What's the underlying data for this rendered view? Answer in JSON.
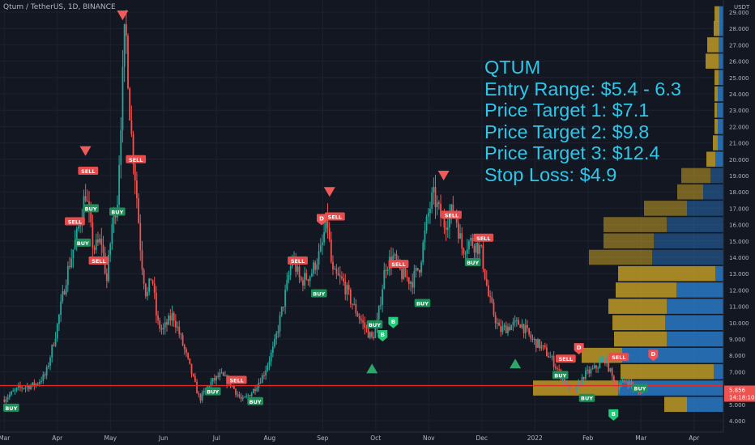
{
  "header": {
    "symbol_line": "Qtum / TetherUS, 1D, BINANCE"
  },
  "price_axis": {
    "unit_label": "USDT",
    "tick_labels": [
      "29.000",
      "28.000",
      "27.000",
      "26.000",
      "25.000",
      "24.000",
      "23.000",
      "22.000",
      "21.000",
      "20.000",
      "19.000",
      "18.000",
      "17.000",
      "16.000",
      "15.000",
      "14.000",
      "13.000",
      "12.000",
      "11.000",
      "10.000",
      "9.000",
      "8.000",
      "7.000",
      "6.000",
      "5.000",
      "4.000"
    ],
    "last_price_label": "5.856",
    "countdown_label": "14:18:10"
  },
  "annotation": {
    "lines": [
      "QTUM",
      "Entry Range: $5.4 - 6.3",
      "Price Target 1: $7.1",
      "Price Target 2: $9.8",
      "Price Target 3: $12.4",
      "Stop Loss: $4.9"
    ]
  },
  "colors": {
    "background": "#131722",
    "up": "#26a69a",
    "down": "#ef5350",
    "annotation": "#2fc6e8",
    "level_line": "#e02b2b",
    "vp_up": "#2a7fd0",
    "vp_down": "#c9a227"
  },
  "chart_data": {
    "type": "candlestick",
    "instrument": "QTUM/USDT",
    "interval": "1D",
    "exchange": "BINANCE",
    "x_labels": [
      "Mar",
      "Apr",
      "May",
      "Jun",
      "Jul",
      "Aug",
      "Sep",
      "Oct",
      "Nov",
      "Dec",
      "2022",
      "Feb",
      "Mar",
      "Apr"
    ],
    "ylim": [
      3.9,
      29.5
    ],
    "horizontal_level": 6.15,
    "last_price": 5.856,
    "price_path": [
      {
        "m": 0.0,
        "p": 5.3
      },
      {
        "m": 0.3,
        "p": 6.0
      },
      {
        "m": 0.6,
        "p": 6.2
      },
      {
        "m": 0.8,
        "p": 6.8
      },
      {
        "m": 1.0,
        "p": 9.5
      },
      {
        "m": 1.2,
        "p": 13.0
      },
      {
        "m": 1.4,
        "p": 15.5
      },
      {
        "m": 1.55,
        "p": 18.0
      },
      {
        "m": 1.7,
        "p": 14.5
      },
      {
        "m": 1.85,
        "p": 15.0
      },
      {
        "m": 1.95,
        "p": 12.5
      },
      {
        "m": 2.05,
        "p": 16.0
      },
      {
        "m": 2.15,
        "p": 17.5
      },
      {
        "m": 2.3,
        "p": 28.5
      },
      {
        "m": 2.4,
        "p": 22.0
      },
      {
        "m": 2.5,
        "p": 18.5
      },
      {
        "m": 2.6,
        "p": 14.0
      },
      {
        "m": 2.7,
        "p": 11.5
      },
      {
        "m": 2.8,
        "p": 13.0
      },
      {
        "m": 2.9,
        "p": 10.0
      },
      {
        "m": 3.0,
        "p": 9.5
      },
      {
        "m": 3.2,
        "p": 10.5
      },
      {
        "m": 3.4,
        "p": 8.5
      },
      {
        "m": 3.7,
        "p": 5.3
      },
      {
        "m": 3.9,
        "p": 6.3
      },
      {
        "m": 4.1,
        "p": 6.8
      },
      {
        "m": 4.3,
        "p": 6.2
      },
      {
        "m": 4.5,
        "p": 5.2
      },
      {
        "m": 4.7,
        "p": 5.8
      },
      {
        "m": 4.9,
        "p": 6.8
      },
      {
        "m": 5.1,
        "p": 8.5
      },
      {
        "m": 5.3,
        "p": 11.5
      },
      {
        "m": 5.45,
        "p": 14.0
      },
      {
        "m": 5.6,
        "p": 12.5
      },
      {
        "m": 5.8,
        "p": 13.0
      },
      {
        "m": 6.0,
        "p": 14.5
      },
      {
        "m": 6.1,
        "p": 16.5
      },
      {
        "m": 6.2,
        "p": 13.0
      },
      {
        "m": 6.4,
        "p": 12.5
      },
      {
        "m": 6.6,
        "p": 11.0
      },
      {
        "m": 6.8,
        "p": 9.8
      },
      {
        "m": 6.95,
        "p": 9.0
      },
      {
        "m": 7.05,
        "p": 10.0
      },
      {
        "m": 7.2,
        "p": 13.5
      },
      {
        "m": 7.35,
        "p": 14.0
      },
      {
        "m": 7.5,
        "p": 13.0
      },
      {
        "m": 7.7,
        "p": 12.5
      },
      {
        "m": 7.85,
        "p": 13.5
      },
      {
        "m": 8.0,
        "p": 16.5
      },
      {
        "m": 8.1,
        "p": 17.8
      },
      {
        "m": 8.3,
        "p": 16.0
      },
      {
        "m": 8.5,
        "p": 17.0
      },
      {
        "m": 8.65,
        "p": 14.5
      },
      {
        "m": 8.8,
        "p": 15.0
      },
      {
        "m": 9.0,
        "p": 14.5
      },
      {
        "m": 9.15,
        "p": 11.5
      },
      {
        "m": 9.35,
        "p": 9.5
      },
      {
        "m": 9.55,
        "p": 9.8
      },
      {
        "m": 9.75,
        "p": 10.0
      },
      {
        "m": 9.95,
        "p": 9.0
      },
      {
        "m": 10.15,
        "p": 8.5
      },
      {
        "m": 10.35,
        "p": 7.7
      },
      {
        "m": 10.55,
        "p": 6.5
      },
      {
        "m": 10.75,
        "p": 5.6
      },
      {
        "m": 10.95,
        "p": 6.8
      },
      {
        "m": 11.15,
        "p": 7.2
      },
      {
        "m": 11.35,
        "p": 7.8
      },
      {
        "m": 11.55,
        "p": 6.0
      },
      {
        "m": 11.75,
        "p": 6.5
      },
      {
        "m": 11.95,
        "p": 5.8
      },
      {
        "m": 12.1,
        "p": 5.856
      }
    ],
    "signals": [
      {
        "label": "BUY",
        "m": 0.15,
        "p": 4.8,
        "side": "buy"
      },
      {
        "label": "SELL",
        "m": 1.35,
        "p": 16.2,
        "side": "sell"
      },
      {
        "label": "SELL",
        "m": 1.6,
        "p": 19.3,
        "side": "sell"
      },
      {
        "label": "BUY",
        "m": 1.65,
        "p": 17.0,
        "side": "buy"
      },
      {
        "label": "BUY",
        "m": 1.5,
        "p": 14.9,
        "side": "buy"
      },
      {
        "label": "SELL",
        "m": 1.8,
        "p": 13.8,
        "side": "sell"
      },
      {
        "label": "BUY",
        "m": 2.15,
        "p": 16.8,
        "side": "buy"
      },
      {
        "label": "SELL",
        "m": 2.5,
        "p": 20.0,
        "side": "sell"
      },
      {
        "label": "BUY",
        "m": 3.95,
        "p": 5.8,
        "side": "buy"
      },
      {
        "label": "SELL",
        "m": 4.4,
        "p": 6.5,
        "side": "sell"
      },
      {
        "label": "BUY",
        "m": 4.75,
        "p": 5.2,
        "side": "buy"
      },
      {
        "label": "SELL",
        "m": 5.55,
        "p": 13.8,
        "side": "sell"
      },
      {
        "label": "BUY",
        "m": 5.95,
        "p": 11.8,
        "side": "buy"
      },
      {
        "label": "SELL",
        "m": 6.25,
        "p": 16.5,
        "side": "sell"
      },
      {
        "label": "BUY",
        "m": 7.0,
        "p": 9.9,
        "side": "buy"
      },
      {
        "label": "SELL",
        "m": 7.45,
        "p": 13.6,
        "side": "sell"
      },
      {
        "label": "BUY",
        "m": 7.9,
        "p": 11.2,
        "side": "buy"
      },
      {
        "label": "SELL",
        "m": 8.45,
        "p": 16.6,
        "side": "sell"
      },
      {
        "label": "BUY",
        "m": 8.85,
        "p": 13.7,
        "side": "buy"
      },
      {
        "label": "SELL",
        "m": 9.05,
        "p": 15.2,
        "side": "sell"
      },
      {
        "label": "BUY",
        "m": 10.5,
        "p": 6.8,
        "side": "buy"
      },
      {
        "label": "SELL",
        "m": 10.6,
        "p": 7.8,
        "side": "sell"
      },
      {
        "label": "BUY",
        "m": 11.0,
        "p": 5.4,
        "side": "buy"
      },
      {
        "label": "SELL",
        "m": 11.6,
        "p": 7.9,
        "side": "sell"
      },
      {
        "label": "BUY",
        "m": 12.0,
        "p": 6.0,
        "side": "buy"
      }
    ],
    "circle_marks": [
      {
        "label": "D",
        "m": 6.0,
        "p": 16.3,
        "side": "sell"
      },
      {
        "label": "D",
        "m": 10.85,
        "p": 8.4,
        "side": "sell"
      },
      {
        "label": "D",
        "m": 12.25,
        "p": 8.0,
        "side": "sell"
      },
      {
        "label": "B",
        "m": 7.15,
        "p": 9.2,
        "side": "buy"
      },
      {
        "label": "B",
        "m": 7.35,
        "p": 10.0,
        "side": "buy"
      },
      {
        "label": "B",
        "m": 11.5,
        "p": 4.35,
        "side": "buy"
      }
    ],
    "triangles": [
      {
        "m": 2.25,
        "p": 28.8,
        "dir": "down"
      },
      {
        "m": 1.55,
        "p": 20.5,
        "dir": "down"
      },
      {
        "m": 6.15,
        "p": 18.0,
        "dir": "down"
      },
      {
        "m": 8.3,
        "p": 19.0,
        "dir": "down"
      },
      {
        "m": 6.95,
        "p": 7.2,
        "dir": "up"
      },
      {
        "m": 9.65,
        "p": 7.5,
        "dir": "up"
      }
    ],
    "volume_profile": [
      {
        "p": 28.9,
        "up": 5,
        "down": 6
      },
      {
        "p": 28.0,
        "up": 5,
        "down": 7
      },
      {
        "p": 27.0,
        "up": 6,
        "down": 14
      },
      {
        "p": 26.0,
        "up": 6,
        "down": 16
      },
      {
        "p": 25.0,
        "up": 6,
        "down": 5
      },
      {
        "p": 24.0,
        "up": 7,
        "down": 4
      },
      {
        "p": 23.0,
        "up": 8,
        "down": 3
      },
      {
        "p": 22.0,
        "up": 7,
        "down": 4
      },
      {
        "p": 21.0,
        "up": 7,
        "down": 6
      },
      {
        "p": 20.0,
        "up": 10,
        "down": 11
      },
      {
        "p": 19.0,
        "up": 16,
        "down": 36
      },
      {
        "p": 18.0,
        "up": 25,
        "down": 32
      },
      {
        "p": 17.0,
        "up": 45,
        "down": 53
      },
      {
        "p": 16.0,
        "up": 70,
        "down": 78
      },
      {
        "p": 15.0,
        "up": 86,
        "down": 62
      },
      {
        "p": 14.0,
        "up": 88,
        "down": 78
      },
      {
        "p": 13.0,
        "up": 10,
        "down": 120
      },
      {
        "p": 12.0,
        "up": 58,
        "down": 75
      },
      {
        "p": 11.0,
        "up": 70,
        "down": 72
      },
      {
        "p": 10.0,
        "up": 72,
        "down": 65
      },
      {
        "p": 9.0,
        "up": 70,
        "down": 65
      },
      {
        "p": 8.0,
        "up": 125,
        "down": 50
      },
      {
        "p": 7.0,
        "up": 12,
        "down": 115
      },
      {
        "p": 6.0,
        "up": 130,
        "down": 105
      },
      {
        "p": 5.0,
        "up": 45,
        "down": 28
      }
    ]
  }
}
